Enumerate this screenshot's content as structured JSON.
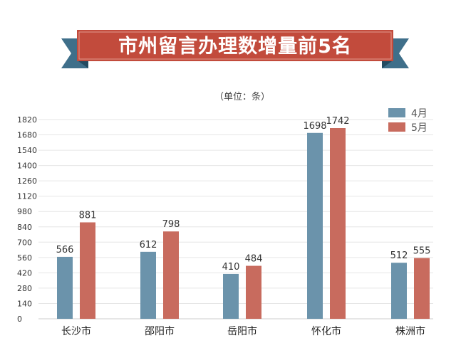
{
  "title": "市州留言办理数增量前5名",
  "unit_note": "（单位：条）",
  "colors": {
    "april": "#6b93ab",
    "may": "#c86b5e",
    "banner": "#c24b3c",
    "ribbon": "#3f6f8a"
  },
  "chart_data": {
    "type": "bar",
    "categories": [
      "长沙市",
      "邵阳市",
      "岳阳市",
      "怀化市",
      "株洲市"
    ],
    "series": [
      {
        "name": "4月",
        "values": [
          566,
          612,
          410,
          1698,
          512
        ]
      },
      {
        "name": "5月",
        "values": [
          881,
          798,
          484,
          1742,
          555
        ]
      }
    ],
    "yticks": [
      0,
      140,
      280,
      420,
      560,
      700,
      840,
      980,
      1120,
      1260,
      1400,
      1540,
      1680,
      1820
    ],
    "ylim": [
      0,
      1820
    ],
    "grid": true,
    "legend": "top-right"
  }
}
